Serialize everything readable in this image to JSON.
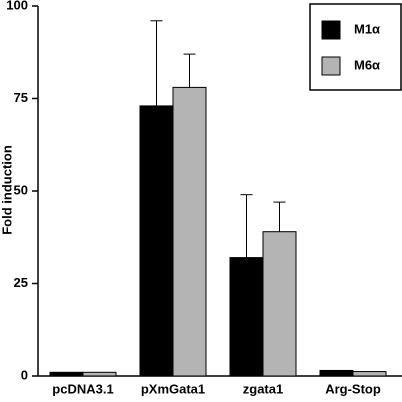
{
  "chart_data": {
    "type": "bar",
    "y_label": "Fold induction",
    "categories": [
      "pcDNA3.1",
      "pXmGata1",
      "zgata1",
      "Arg-Stop"
    ],
    "series": [
      {
        "name": "M1α",
        "color": "#000000",
        "values": [
          1,
          73,
          32,
          1.5
        ],
        "errors": [
          null,
          23,
          17,
          null
        ]
      },
      {
        "name": "M6α",
        "color": "#b4b4b4",
        "values": [
          1,
          78,
          39,
          1.2
        ],
        "errors": [
          null,
          9,
          8,
          null
        ]
      }
    ],
    "ylim": [
      0,
      100
    ],
    "yticks": [
      0,
      25,
      50,
      75,
      100
    ],
    "legend": "upper right"
  }
}
